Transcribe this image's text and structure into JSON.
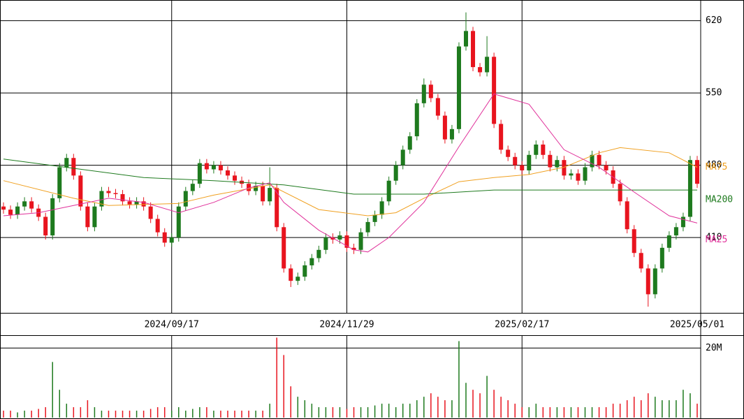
{
  "chart_data": {
    "type": "candlestick",
    "categories": [
      null,
      null,
      null,
      null,
      null,
      null,
      null,
      null,
      null,
      null,
      null,
      null,
      null,
      null,
      null,
      null,
      null,
      null,
      null,
      null,
      null,
      null,
      null,
      null,
      "2024/09/17",
      null,
      null,
      null,
      null,
      null,
      null,
      null,
      null,
      null,
      null,
      null,
      null,
      null,
      null,
      null,
      null,
      null,
      null,
      null,
      null,
      null,
      null,
      null,
      null,
      "2024/11/29",
      null,
      null,
      null,
      null,
      null,
      null,
      null,
      null,
      null,
      null,
      null,
      null,
      null,
      null,
      null,
      null,
      null,
      null,
      null,
      null,
      null,
      null,
      null,
      null,
      "2025/02/17",
      null,
      null,
      null,
      null,
      null,
      null,
      null,
      null,
      null,
      null,
      null,
      null,
      null,
      null,
      null,
      null,
      null,
      null,
      null,
      null,
      null,
      null,
      null,
      null,
      "2025/05/01"
    ],
    "open": [
      440,
      437,
      432,
      440,
      445,
      438,
      430,
      412,
      448,
      478,
      487,
      470,
      440,
      420,
      440,
      455,
      453,
      452,
      445,
      442,
      445,
      440,
      428,
      415,
      405,
      410,
      440,
      455,
      462,
      482,
      476,
      480,
      475,
      470,
      465,
      462,
      455,
      460,
      445,
      458,
      420,
      380,
      368,
      372,
      383,
      390,
      398,
      410,
      408,
      412,
      400,
      398,
      415,
      425,
      432,
      445,
      465,
      480,
      495,
      508,
      540,
      558,
      545,
      528,
      505,
      515,
      595,
      610,
      575,
      570,
      585,
      520,
      495,
      488,
      480,
      475,
      490,
      500,
      490,
      478,
      485,
      470,
      472,
      465,
      478,
      490,
      480,
      475,
      462,
      445,
      418,
      395,
      380,
      355,
      380,
      400,
      412,
      420,
      430,
      485
    ],
    "high": [
      444,
      441,
      444,
      449,
      449,
      442,
      434,
      452,
      482,
      491,
      491,
      474,
      444,
      444,
      459,
      459,
      457,
      456,
      449,
      449,
      449,
      444,
      432,
      419,
      414,
      444,
      459,
      466,
      486,
      486,
      484,
      484,
      479,
      474,
      469,
      466,
      464,
      464,
      478,
      462,
      424,
      384,
      376,
      387,
      394,
      402,
      414,
      414,
      416,
      416,
      404,
      419,
      429,
      436,
      449,
      469,
      484,
      499,
      512,
      544,
      564,
      562,
      549,
      532,
      519,
      599,
      628,
      614,
      579,
      605,
      589,
      524,
      499,
      492,
      484,
      494,
      504,
      504,
      494,
      489,
      489,
      476,
      476,
      482,
      494,
      494,
      484,
      479,
      466,
      449,
      422,
      399,
      384,
      384,
      404,
      416,
      424,
      434,
      489,
      489
    ],
    "low": [
      433,
      428,
      428,
      436,
      434,
      426,
      408,
      408,
      444,
      474,
      466,
      436,
      416,
      416,
      436,
      449,
      448,
      441,
      438,
      438,
      436,
      424,
      411,
      401,
      401,
      406,
      436,
      451,
      458,
      472,
      472,
      471,
      466,
      461,
      458,
      451,
      451,
      441,
      441,
      416,
      376,
      362,
      364,
      368,
      379,
      386,
      394,
      404,
      404,
      396,
      394,
      394,
      411,
      421,
      428,
      441,
      461,
      476,
      491,
      504,
      536,
      541,
      524,
      501,
      501,
      511,
      591,
      571,
      566,
      566,
      516,
      491,
      484,
      476,
      471,
      471,
      486,
      486,
      474,
      474,
      466,
      466,
      461,
      461,
      474,
      476,
      471,
      458,
      441,
      414,
      391,
      376,
      343,
      351,
      376,
      396,
      408,
      416,
      426,
      458
    ],
    "close": [
      437,
      432,
      440,
      445,
      438,
      430,
      412,
      448,
      478,
      487,
      470,
      440,
      420,
      440,
      455,
      453,
      452,
      445,
      442,
      445,
      440,
      428,
      415,
      405,
      410,
      440,
      455,
      462,
      482,
      476,
      480,
      475,
      470,
      465,
      462,
      455,
      460,
      445,
      458,
      420,
      380,
      368,
      372,
      383,
      390,
      398,
      410,
      408,
      412,
      400,
      398,
      415,
      425,
      432,
      445,
      465,
      480,
      495,
      508,
      540,
      558,
      545,
      528,
      505,
      515,
      595,
      610,
      575,
      570,
      585,
      520,
      495,
      488,
      480,
      475,
      490,
      500,
      490,
      478,
      485,
      470,
      472,
      465,
      478,
      490,
      480,
      475,
      462,
      445,
      418,
      395,
      380,
      355,
      380,
      400,
      412,
      420,
      430,
      485,
      462
    ],
    "up_color": "#1e7a1e",
    "down_color": "#e8141e",
    "ylim": [
      337,
      640
    ],
    "yticks": [
      410,
      480,
      550,
      620
    ],
    "grid": true,
    "lines": [
      {
        "name": "MA75",
        "color": "#f0a020",
        "x": [
          0,
          10,
          15,
          25,
          30,
          38,
          45,
          52,
          56,
          60,
          65,
          70,
          75,
          80,
          85,
          88,
          95,
          99
        ],
        "values": [
          465,
          448,
          441,
          443,
          451,
          461,
          437,
          431,
          434,
          448,
          464,
          468,
          471,
          478,
          492,
          497,
          492,
          478
        ]
      },
      {
        "name": "MA200",
        "color": "#1e7a1e",
        "x": [
          0,
          10,
          20,
          30,
          40,
          50,
          60,
          70,
          80,
          90,
          99
        ],
        "values": [
          486,
          477,
          468,
          465,
          461,
          452,
          452,
          456,
          456,
          456,
          456
        ]
      },
      {
        "name": "MA25",
        "color": "#e0309a",
        "x": [
          0,
          5,
          10,
          15,
          20,
          25,
          30,
          35,
          38,
          40,
          45,
          50,
          52,
          55,
          60,
          65,
          70,
          75,
          80,
          85,
          90,
          95,
          99
        ],
        "values": [
          431,
          434,
          441,
          448,
          444,
          434,
          444,
          458,
          463,
          444,
          417,
          398,
          396,
          410,
          444,
          498,
          549,
          539,
          495,
          478,
          454,
          431,
          424
        ]
      }
    ],
    "volume": {
      "values": [
        2,
        2,
        1.5,
        2,
        2,
        2.5,
        3,
        16,
        8,
        4,
        3,
        3,
        5,
        3,
        2,
        2,
        2,
        2,
        2,
        2,
        2,
        2.5,
        3,
        3,
        2,
        3,
        2,
        2.5,
        3,
        3,
        2,
        2,
        2,
        2,
        2,
        2,
        2,
        2,
        4,
        23,
        18,
        9,
        6,
        5,
        4,
        3,
        3,
        3,
        3,
        2.5,
        3,
        3,
        3,
        3.5,
        4,
        4,
        3,
        4,
        4,
        5,
        6,
        7,
        6,
        5,
        5,
        22,
        10,
        8,
        7,
        12,
        8,
        6,
        5,
        4,
        3,
        3,
        4,
        3,
        3,
        3,
        3,
        3,
        3,
        3,
        3,
        3,
        3,
        4,
        4,
        5,
        6,
        5,
        7,
        6,
        5,
        5,
        5,
        8,
        7,
        4
      ],
      "ylim": [
        0,
        23.5
      ],
      "yticks": [
        {
          "value": 20,
          "label": "20M"
        }
      ]
    }
  }
}
